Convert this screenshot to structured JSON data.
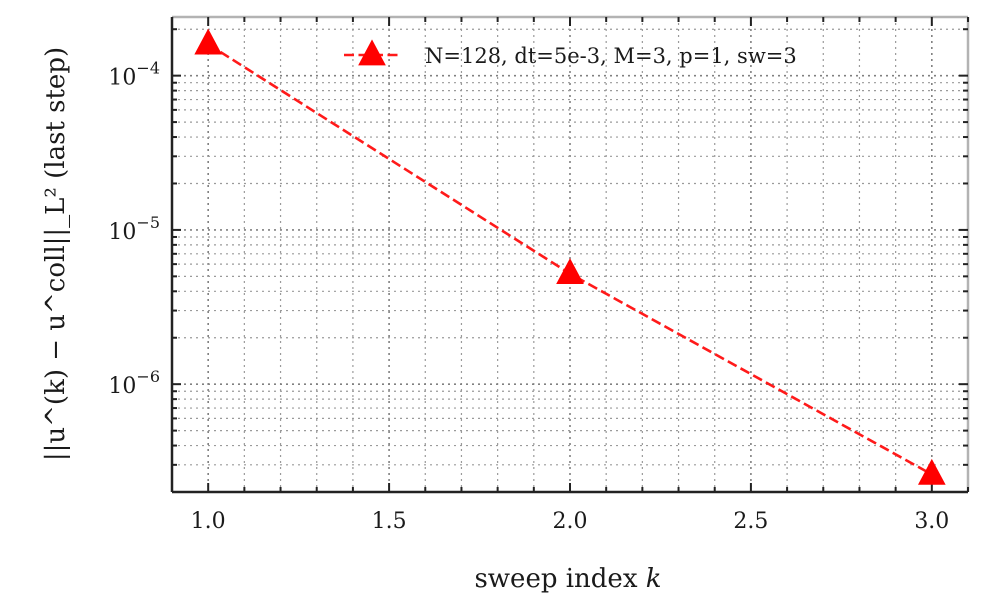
{
  "chart_data": {
    "type": "line",
    "xlabel": "sweep index ",
    "xlabel_var": "k",
    "ylabel": "||u^(k) − u^coll||_L² (last step)",
    "x_scale": "linear",
    "y_scale": "log",
    "xlim": [
      0.9,
      3.1
    ],
    "ylim": [
      2e-07,
      0.00024
    ],
    "x_ticks": [
      1.0,
      1.5,
      2.0,
      2.5,
      3.0
    ],
    "x_tick_labels": [
      "1.0",
      "1.5",
      "2.0",
      "2.5",
      "3.0"
    ],
    "y_ticks": [
      1e-06,
      1e-05,
      0.0001
    ],
    "y_tick_labels": [
      "10",
      "10",
      "10"
    ],
    "y_tick_exponents": [
      "−6",
      "−5",
      "−4"
    ],
    "grid": "major and minor, dotted",
    "legend_position": "top-right",
    "series": [
      {
        "name": "N=128, dt=5e-3, M=3, p=1, sw=3",
        "color": "#ff0000",
        "line_style": "dashed",
        "marker": "triangle-up",
        "x": [
          1.0,
          2.0,
          3.0
        ],
        "y": [
          0.00016,
          5.2e-06,
          2.6e-07
        ]
      }
    ]
  }
}
